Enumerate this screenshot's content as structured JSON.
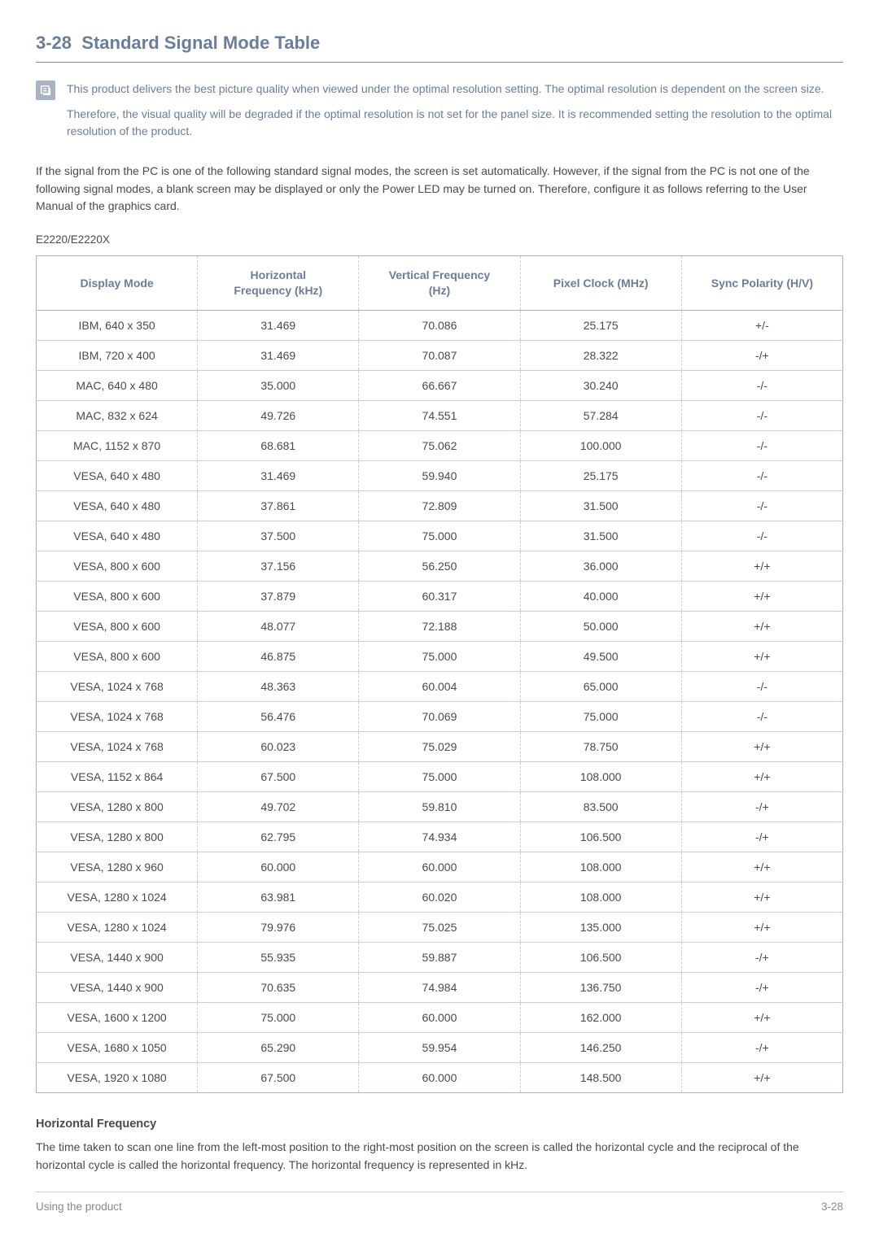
{
  "section": {
    "number": "3-28",
    "title": "Standard Signal Mode Table"
  },
  "note": {
    "p1": "This product delivers the best picture quality when viewed under the optimal resolution setting. The optimal resolution is dependent on the screen size.",
    "p2": "Therefore, the visual quality will be degraded if the optimal resolution is not set for the panel size. It is recommended setting the resolution to the optimal resolution of the product."
  },
  "intro": "If the signal from the PC is one of the following standard signal modes, the screen is set automatically. However, if the signal from the PC is not one of the following signal modes, a blank screen may be displayed or only the Power LED may be turned on. Therefore, configure it as follows referring to the User Manual of the graphics card.",
  "model": "E2220/E2220X",
  "table": {
    "columns": [
      "Display Mode",
      "Horizontal Frequency (kHz)",
      "Vertical Frequency (Hz)",
      "Pixel Clock (MHz)",
      "Sync Polarity (H/V)"
    ],
    "rows": [
      [
        "IBM, 640 x 350",
        "31.469",
        "70.086",
        "25.175",
        "+/-"
      ],
      [
        "IBM, 720 x 400",
        "31.469",
        "70.087",
        "28.322",
        "-/+"
      ],
      [
        "MAC, 640 x 480",
        "35.000",
        "66.667",
        "30.240",
        "-/-"
      ],
      [
        "MAC, 832 x 624",
        "49.726",
        "74.551",
        "57.284",
        "-/-"
      ],
      [
        "MAC, 1152 x 870",
        "68.681",
        "75.062",
        "100.000",
        "-/-"
      ],
      [
        "VESA, 640 x 480",
        "31.469",
        "59.940",
        "25.175",
        "-/-"
      ],
      [
        "VESA, 640 x 480",
        "37.861",
        "72.809",
        "31.500",
        "-/-"
      ],
      [
        "VESA, 640 x 480",
        "37.500",
        "75.000",
        "31.500",
        "-/-"
      ],
      [
        "VESA, 800 x 600",
        "37.156",
        "56.250",
        "36.000",
        "+/+"
      ],
      [
        "VESA, 800 x 600",
        "37.879",
        "60.317",
        "40.000",
        "+/+"
      ],
      [
        "VESA, 800 x 600",
        "48.077",
        "72.188",
        "50.000",
        "+/+"
      ],
      [
        "VESA, 800 x 600",
        "46.875",
        "75.000",
        "49.500",
        "+/+"
      ],
      [
        "VESA, 1024 x 768",
        "48.363",
        "60.004",
        "65.000",
        "-/-"
      ],
      [
        "VESA, 1024 x 768",
        "56.476",
        "70.069",
        "75.000",
        "-/-"
      ],
      [
        "VESA, 1024 x 768",
        "60.023",
        "75.029",
        "78.750",
        "+/+"
      ],
      [
        "VESA, 1152 x 864",
        "67.500",
        "75.000",
        "108.000",
        "+/+"
      ],
      [
        "VESA, 1280 x 800",
        "49.702",
        "59.810",
        "83.500",
        "-/+"
      ],
      [
        "VESA, 1280 x 800",
        "62.795",
        "74.934",
        "106.500",
        "-/+"
      ],
      [
        "VESA, 1280 x 960",
        "60.000",
        "60.000",
        "108.000",
        "+/+"
      ],
      [
        "VESA, 1280 x 1024",
        "63.981",
        "60.020",
        "108.000",
        "+/+"
      ],
      [
        "VESA, 1280 x 1024",
        "79.976",
        "75.025",
        "135.000",
        "+/+"
      ],
      [
        "VESA, 1440 x 900",
        "55.935",
        "59.887",
        "106.500",
        "-/+"
      ],
      [
        "VESA, 1440 x 900",
        "70.635",
        "74.984",
        "136.750",
        "-/+"
      ],
      [
        "VESA, 1600 x 1200",
        "75.000",
        "60.000",
        "162.000",
        "+/+"
      ],
      [
        "VESA, 1680 x 1050",
        "65.290",
        "59.954",
        "146.250",
        "-/+"
      ],
      [
        "VESA, 1920 x 1080",
        "67.500",
        "60.000",
        "148.500",
        "+/+"
      ]
    ]
  },
  "hf": {
    "title": "Horizontal Frequency",
    "body": "The time taken to scan one line from the left-most position to the right-most position on the screen is called the horizontal cycle and the reciprocal of the horizontal cycle is called the horizontal frequency. The horizontal frequency is represented in kHz."
  },
  "footer": {
    "left": "Using the product",
    "right": "3-28"
  },
  "colors": {
    "accent": "#6b7d9a",
    "text": "#4a4a4a",
    "border": "#a9b3c4",
    "row_border": "#c7cfda"
  }
}
